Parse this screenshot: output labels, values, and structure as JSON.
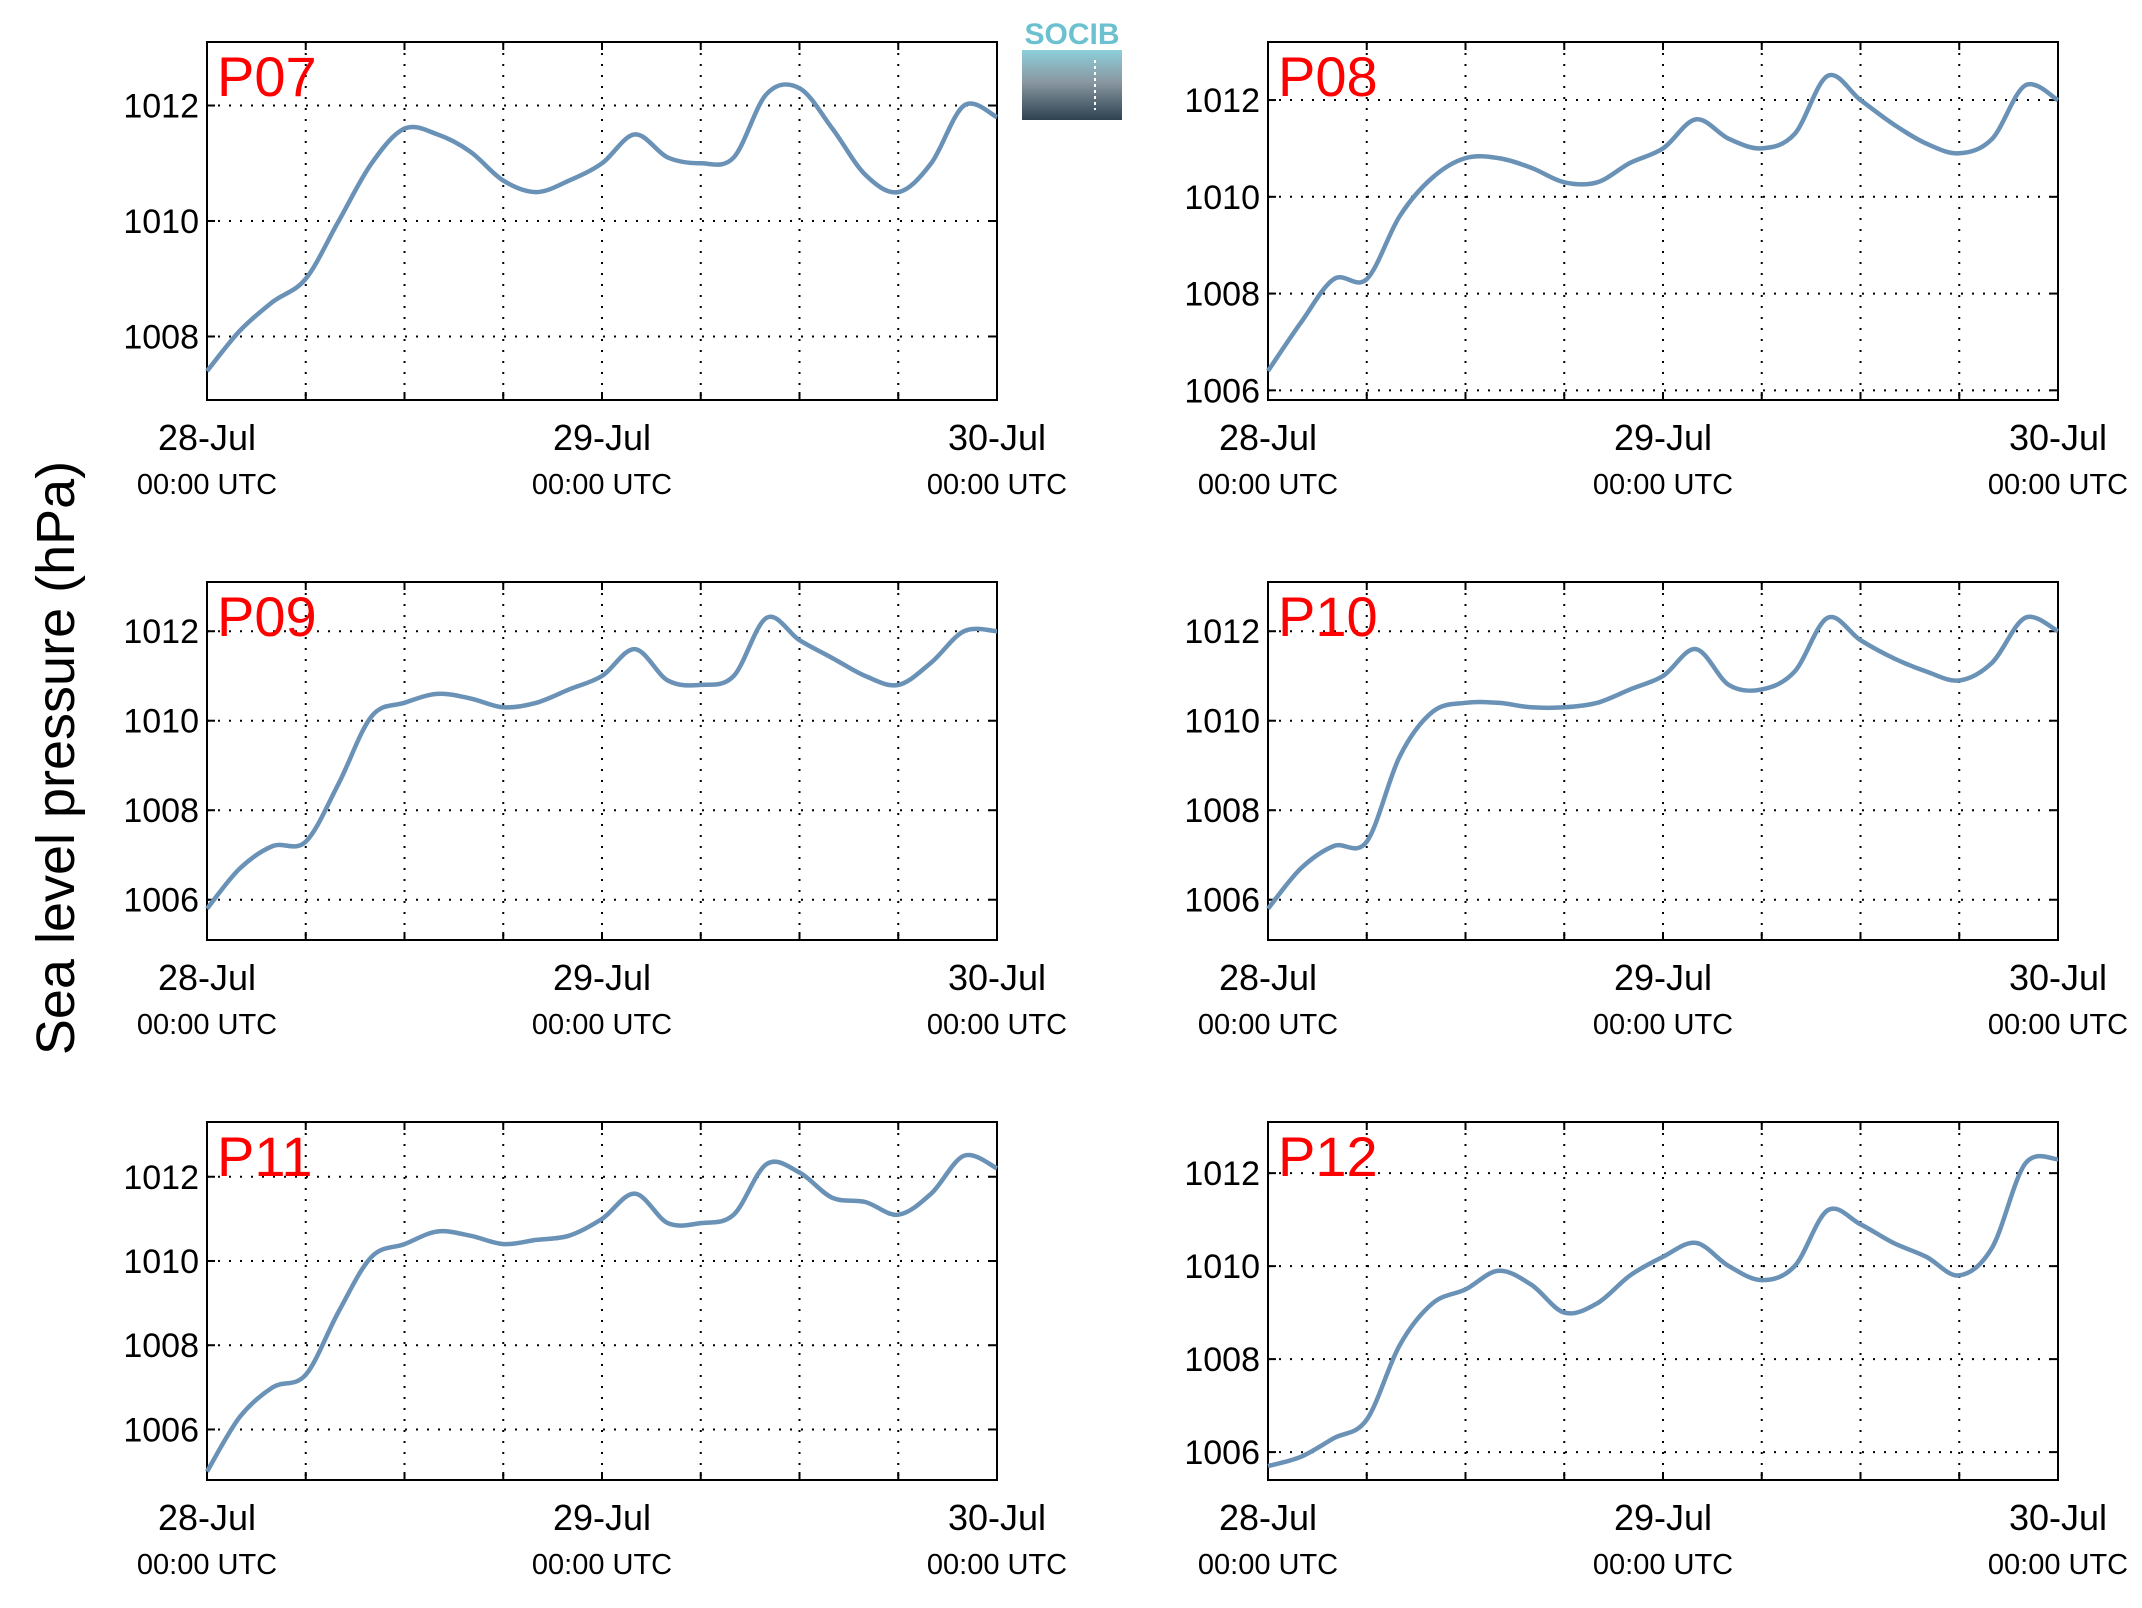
{
  "figure": {
    "ylabel": "Sea level pressure (hPa)",
    "logo_text": "SOCIB",
    "colors": {
      "line": "#6a92b6",
      "panel_label": "#ff0000",
      "logo_top": "#7fc8d3",
      "logo_bottom": "#2e4251"
    }
  },
  "chart_data": [
    {
      "type": "line",
      "label": "P07",
      "x": [
        0,
        2,
        4,
        6,
        8,
        10,
        12,
        14,
        16,
        18,
        20,
        22,
        24,
        26,
        28,
        30,
        32,
        34,
        36,
        38,
        40,
        42,
        44,
        46,
        48
      ],
      "values": [
        1007.4,
        1008.1,
        1008.6,
        1009.0,
        1010.0,
        1011.0,
        1011.6,
        1011.5,
        1011.2,
        1010.7,
        1010.5,
        1010.7,
        1011.0,
        1011.5,
        1011.1,
        1011.0,
        1011.1,
        1012.2,
        1012.3,
        1011.6,
        1010.8,
        1010.5,
        1011.0,
        1012.0,
        1011.8
      ],
      "xticks": [
        0,
        24,
        48
      ],
      "xtick_labels": [
        [
          "28-Jul",
          "00:00 UTC"
        ],
        [
          "29-Jul",
          "00:00 UTC"
        ],
        [
          "30-Jul",
          "00:00 UTC"
        ]
      ],
      "yticks": [
        "1008",
        "1010",
        "1012"
      ],
      "ylim": [
        1006.9,
        1013.1
      ],
      "xlim": [
        0,
        48
      ],
      "grid": true
    },
    {
      "type": "line",
      "label": "P08",
      "x": [
        0,
        2,
        4,
        6,
        8,
        10,
        12,
        14,
        16,
        18,
        20,
        22,
        24,
        26,
        28,
        30,
        32,
        34,
        36,
        38,
        40,
        42,
        44,
        46,
        48
      ],
      "values": [
        1006.4,
        1007.4,
        1008.3,
        1008.3,
        1009.6,
        1010.4,
        1010.8,
        1010.8,
        1010.6,
        1010.3,
        1010.3,
        1010.7,
        1011.0,
        1011.6,
        1011.2,
        1011.0,
        1011.3,
        1012.5,
        1012.0,
        1011.5,
        1011.1,
        1010.9,
        1011.2,
        1012.3,
        1012.0
      ],
      "xticks": [
        0,
        24,
        48
      ],
      "xtick_labels": [
        [
          "28-Jul",
          "00:00 UTC"
        ],
        [
          "29-Jul",
          "00:00 UTC"
        ],
        [
          "30-Jul",
          "00:00 UTC"
        ]
      ],
      "yticks": [
        "1006",
        "1008",
        "1010",
        "1012"
      ],
      "ylim": [
        1005.8,
        1013.2
      ],
      "xlim": [
        0,
        48
      ],
      "grid": true
    },
    {
      "type": "line",
      "label": "P09",
      "x": [
        0,
        2,
        4,
        6,
        8,
        10,
        12,
        14,
        16,
        18,
        20,
        22,
        24,
        26,
        28,
        30,
        32,
        34,
        36,
        38,
        40,
        42,
        44,
        46,
        48
      ],
      "values": [
        1005.8,
        1006.7,
        1007.2,
        1007.3,
        1008.6,
        1010.1,
        1010.4,
        1010.6,
        1010.5,
        1010.3,
        1010.4,
        1010.7,
        1011.0,
        1011.6,
        1010.9,
        1010.8,
        1011.0,
        1012.3,
        1011.8,
        1011.4,
        1011.0,
        1010.8,
        1011.3,
        1012.0,
        1012.0
      ],
      "xticks": [
        0,
        24,
        48
      ],
      "xtick_labels": [
        [
          "28-Jul",
          "00:00 UTC"
        ],
        [
          "29-Jul",
          "00:00 UTC"
        ],
        [
          "30-Jul",
          "00:00 UTC"
        ]
      ],
      "yticks": [
        "1006",
        "1008",
        "1010",
        "1012"
      ],
      "ylim": [
        1005.1,
        1013.1
      ],
      "xlim": [
        0,
        48
      ],
      "grid": true
    },
    {
      "type": "line",
      "label": "P10",
      "x": [
        0,
        2,
        4,
        6,
        8,
        10,
        12,
        14,
        16,
        18,
        20,
        22,
        24,
        26,
        28,
        30,
        32,
        34,
        36,
        38,
        40,
        42,
        44,
        46,
        48
      ],
      "values": [
        1005.8,
        1006.7,
        1007.2,
        1007.3,
        1009.2,
        1010.2,
        1010.4,
        1010.4,
        1010.3,
        1010.3,
        1010.4,
        1010.7,
        1011.0,
        1011.6,
        1010.8,
        1010.7,
        1011.1,
        1012.3,
        1011.8,
        1011.4,
        1011.1,
        1010.9,
        1011.3,
        1012.3,
        1012.0
      ],
      "xticks": [
        0,
        24,
        48
      ],
      "xtick_labels": [
        [
          "28-Jul",
          "00:00 UTC"
        ],
        [
          "29-Jul",
          "00:00 UTC"
        ],
        [
          "30-Jul",
          "00:00 UTC"
        ]
      ],
      "yticks": [
        "1006",
        "1008",
        "1010",
        "1012"
      ],
      "ylim": [
        1005.1,
        1013.1
      ],
      "xlim": [
        0,
        48
      ],
      "grid": true
    },
    {
      "type": "line",
      "label": "P11",
      "x": [
        0,
        2,
        4,
        6,
        8,
        10,
        12,
        14,
        16,
        18,
        20,
        22,
        24,
        26,
        28,
        30,
        32,
        34,
        36,
        38,
        40,
        42,
        44,
        46,
        48
      ],
      "values": [
        1005.0,
        1006.3,
        1007.0,
        1007.3,
        1008.8,
        1010.1,
        1010.4,
        1010.7,
        1010.6,
        1010.4,
        1010.5,
        1010.6,
        1011.0,
        1011.6,
        1010.9,
        1010.9,
        1011.1,
        1012.3,
        1012.1,
        1011.5,
        1011.4,
        1011.1,
        1011.6,
        1012.5,
        1012.2
      ],
      "xticks": [
        0,
        24,
        48
      ],
      "xtick_labels": [
        [
          "28-Jul",
          "00:00 UTC"
        ],
        [
          "29-Jul",
          "00:00 UTC"
        ],
        [
          "30-Jul",
          "00:00 UTC"
        ]
      ],
      "yticks": [
        "1006",
        "1008",
        "1010",
        "1012"
      ],
      "ylim": [
        1004.8,
        1013.3
      ],
      "xlim": [
        0,
        48
      ],
      "grid": true
    },
    {
      "type": "line",
      "label": "P12",
      "x": [
        0,
        2,
        4,
        6,
        8,
        10,
        12,
        14,
        16,
        18,
        20,
        22,
        24,
        26,
        28,
        30,
        32,
        34,
        36,
        38,
        40,
        42,
        44,
        46,
        48
      ],
      "values": [
        1005.7,
        1005.9,
        1006.3,
        1006.7,
        1008.3,
        1009.2,
        1009.5,
        1009.9,
        1009.6,
        1009.0,
        1009.2,
        1009.8,
        1010.2,
        1010.5,
        1010.0,
        1009.7,
        1010.0,
        1011.2,
        1010.9,
        1010.5,
        1010.2,
        1009.8,
        1010.4,
        1012.2,
        1012.3
      ],
      "xticks": [
        0,
        24,
        48
      ],
      "xtick_labels": [
        [
          "28-Jul",
          "00:00 UTC"
        ],
        [
          "29-Jul",
          "00:00 UTC"
        ],
        [
          "30-Jul",
          "00:00 UTC"
        ]
      ],
      "yticks": [
        "1006",
        "1008",
        "1010",
        "1012"
      ],
      "ylim": [
        1005.4,
        1013.1
      ],
      "xlim": [
        0,
        48
      ],
      "grid": true
    }
  ]
}
